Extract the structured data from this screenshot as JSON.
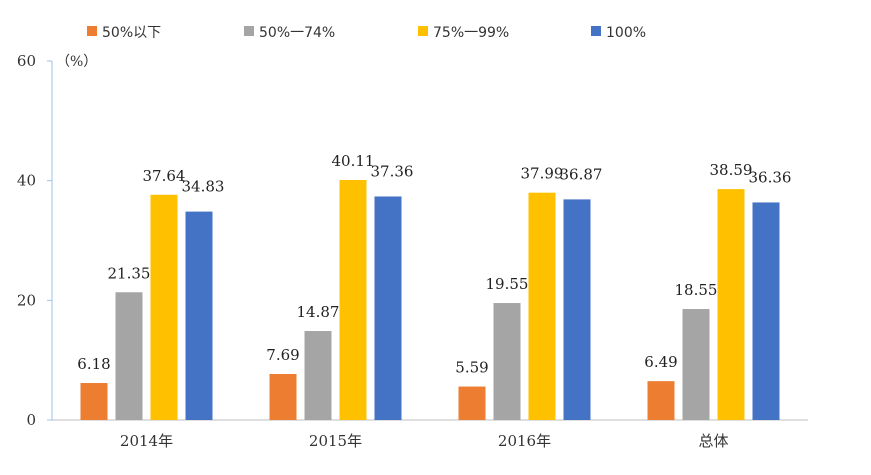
{
  "chart_data": {
    "type": "bar",
    "title": "",
    "xlabel": "",
    "ylabel": "（%）",
    "ylim": [
      0,
      60
    ],
    "yticks": [
      0,
      20,
      40,
      60
    ],
    "grid": false,
    "legend_position": "top",
    "categories": [
      "2014年",
      "2015年",
      "2016年",
      "总体"
    ],
    "series": [
      {
        "name": "50%以下",
        "color": "#ED7D31",
        "values": [
          6.18,
          7.69,
          5.59,
          6.49
        ]
      },
      {
        "name": "50%一74%",
        "color": "#A5A5A5",
        "values": [
          21.35,
          14.87,
          19.55,
          18.55
        ]
      },
      {
        "name": "75%一99%",
        "color": "#FFC000",
        "values": [
          37.64,
          40.11,
          37.99,
          38.59
        ]
      },
      {
        "name": "100%",
        "color": "#4472C4",
        "values": [
          34.83,
          37.36,
          36.87,
          36.36
        ]
      }
    ],
    "data_labels": [
      [
        "6.18",
        "7.69",
        "5.59",
        "6.49"
      ],
      [
        "21.35",
        "14.87",
        "19.55",
        "18.55"
      ],
      [
        "37.64",
        "40.11",
        "37.99",
        "38.59"
      ],
      [
        "34.83",
        "37.36",
        "36.87",
        "36.36"
      ]
    ]
  }
}
